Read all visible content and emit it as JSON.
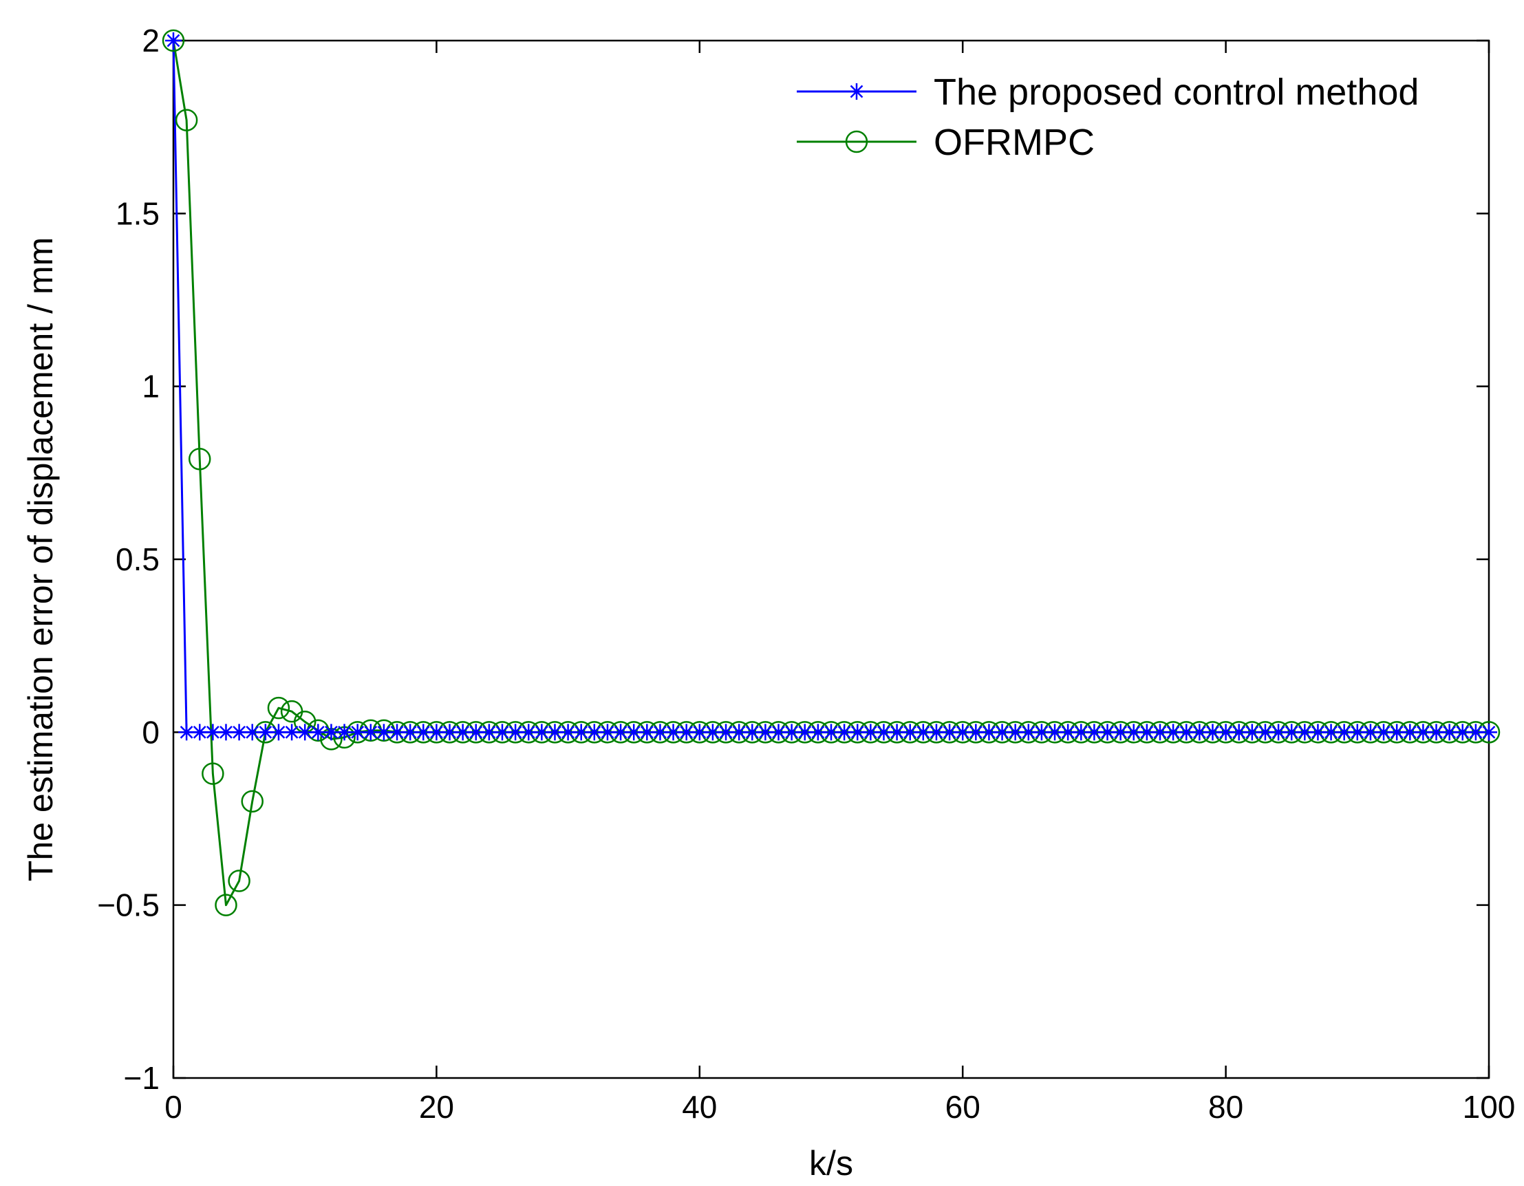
{
  "chart_data": {
    "type": "line",
    "title": "",
    "xlabel": "k/s",
    "ylabel": "The estimation error of displacement / mm",
    "xlim": [
      0,
      100
    ],
    "ylim": [
      -1,
      2
    ],
    "xticks": [
      0,
      20,
      40,
      60,
      80,
      100
    ],
    "yticks": [
      -1,
      -0.5,
      0,
      0.5,
      1,
      1.5,
      2
    ],
    "xtick_labels": [
      "0",
      "20",
      "40",
      "60",
      "80",
      "100"
    ],
    "ytick_labels": [
      "−1",
      "−0.5",
      "0",
      "0.5",
      "1",
      "1.5",
      "2"
    ],
    "grid": false,
    "legend_position": "top-right",
    "x": [
      0,
      1,
      2,
      3,
      4,
      5,
      6,
      7,
      8,
      9,
      10,
      11,
      12,
      13,
      14,
      15,
      16,
      17,
      18,
      19,
      20,
      21,
      22,
      23,
      24,
      25,
      26,
      27,
      28,
      29,
      30,
      31,
      32,
      33,
      34,
      35,
      36,
      37,
      38,
      39,
      40,
      41,
      42,
      43,
      44,
      45,
      46,
      47,
      48,
      49,
      50,
      51,
      52,
      53,
      54,
      55,
      56,
      57,
      58,
      59,
      60,
      61,
      62,
      63,
      64,
      65,
      66,
      67,
      68,
      69,
      70,
      71,
      72,
      73,
      74,
      75,
      76,
      77,
      78,
      79,
      80,
      81,
      82,
      83,
      84,
      85,
      86,
      87,
      88,
      89,
      90,
      91,
      92,
      93,
      94,
      95,
      96,
      97,
      98,
      99,
      100
    ],
    "series": [
      {
        "name": "The proposed control method",
        "color": "#0000ff",
        "marker": "asterisk",
        "values": [
          2,
          0,
          0,
          0,
          0,
          0,
          0,
          0,
          0,
          0,
          0,
          0,
          0,
          0,
          0,
          0,
          0,
          0,
          0,
          0,
          0,
          0,
          0,
          0,
          0,
          0,
          0,
          0,
          0,
          0,
          0,
          0,
          0,
          0,
          0,
          0,
          0,
          0,
          0,
          0,
          0,
          0,
          0,
          0,
          0,
          0,
          0,
          0,
          0,
          0,
          0,
          0,
          0,
          0,
          0,
          0,
          0,
          0,
          0,
          0,
          0,
          0,
          0,
          0,
          0,
          0,
          0,
          0,
          0,
          0,
          0,
          0,
          0,
          0,
          0,
          0,
          0,
          0,
          0,
          0,
          0,
          0,
          0,
          0,
          0,
          0,
          0,
          0,
          0,
          0,
          0,
          0,
          0,
          0,
          0,
          0,
          0,
          0,
          0,
          0,
          0
        ]
      },
      {
        "name": "OFRMPC",
        "color": "#008000",
        "marker": "circle",
        "values": [
          2,
          1.77,
          0.79,
          -0.12,
          -0.5,
          -0.43,
          -0.2,
          0,
          0.07,
          0.06,
          0.03,
          0.005,
          -0.02,
          -0.015,
          0,
          0.005,
          0.005,
          0,
          0,
          0,
          0,
          0,
          0,
          0,
          0,
          0,
          0,
          0,
          0,
          0,
          0,
          0,
          0,
          0,
          0,
          0,
          0,
          0,
          0,
          0,
          0,
          0,
          0,
          0,
          0,
          0,
          0,
          0,
          0,
          0,
          0,
          0,
          0,
          0,
          0,
          0,
          0,
          0,
          0,
          0,
          0,
          0,
          0,
          0,
          0,
          0,
          0,
          0,
          0,
          0,
          0,
          0,
          0,
          0,
          0,
          0,
          0,
          0,
          0,
          0,
          0,
          0,
          0,
          0,
          0,
          0,
          0,
          0,
          0,
          0,
          0,
          0,
          0,
          0,
          0,
          0,
          0,
          0,
          0,
          0,
          0
        ]
      }
    ]
  }
}
